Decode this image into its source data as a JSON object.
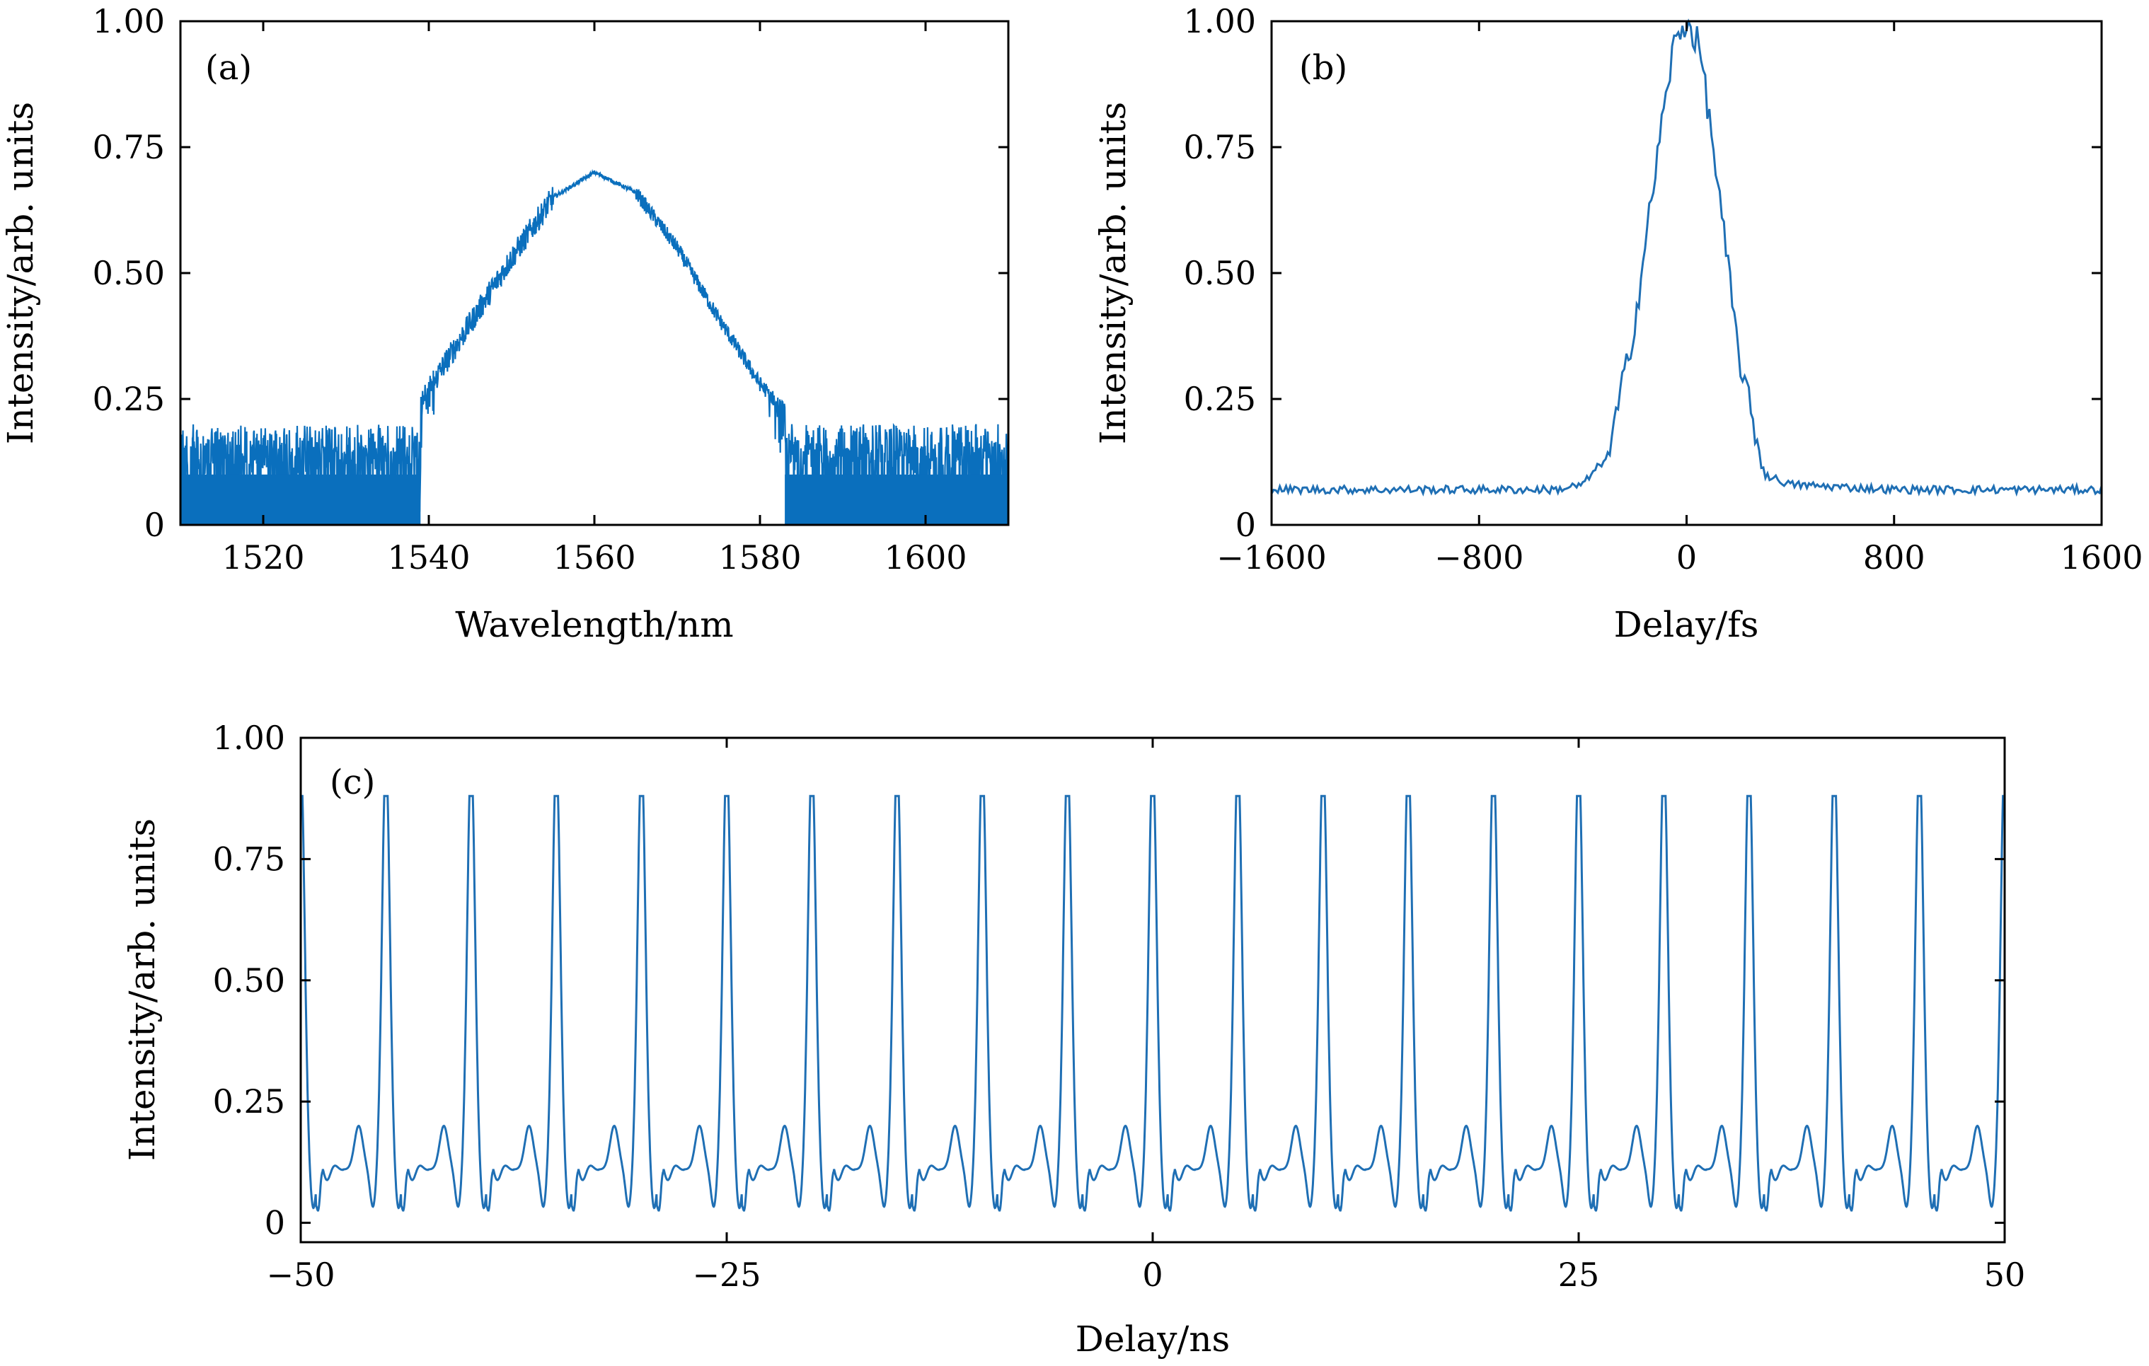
{
  "figure": {
    "line_color": "#1f6fb4",
    "fill_color": "#0a6fbd"
  },
  "chart_data": [
    {
      "id": "a",
      "type": "line",
      "panel_label": "(a)",
      "xlabel": "Wavelength/nm",
      "ylabel": "Intensity/arb. units",
      "xlim": [
        1510,
        1610
      ],
      "ylim": [
        0,
        1
      ],
      "xticks": [
        1520,
        1540,
        1560,
        1580,
        1600
      ],
      "xtick_labels": [
        "1520",
        "1540",
        "1560",
        "1580",
        "1600"
      ],
      "yticks": [
        0,
        0.25,
        0.5,
        0.75,
        1.0
      ],
      "ytick_labels": [
        "0",
        "0.25",
        "0.50",
        "0.75",
        "1.00"
      ],
      "grid": false,
      "peak_wavelength": 1560,
      "peak_intensity": 0.7,
      "noise_floor": 0.18,
      "series": [
        {
          "x": [
            1510,
            1520,
            1530,
            1536,
            1540,
            1545,
            1550,
            1555,
            1560,
            1565,
            1570,
            1575,
            1580,
            1585,
            1590,
            1600,
            1610
          ],
          "values": [
            0.17,
            0.17,
            0.17,
            0.19,
            0.27,
            0.4,
            0.53,
            0.65,
            0.7,
            0.66,
            0.55,
            0.41,
            0.28,
            0.19,
            0.17,
            0.17,
            0.17
          ]
        }
      ]
    },
    {
      "id": "b",
      "type": "line",
      "panel_label": "(b)",
      "xlabel": "Delay/fs",
      "ylabel": "Intensity/arb. units",
      "xlim": [
        -1600,
        1600
      ],
      "ylim": [
        0,
        1
      ],
      "xticks": [
        -1600,
        -800,
        0,
        800,
        1600
      ],
      "xtick_labels": [
        "−1600",
        "−800",
        "0",
        "800",
        "1600"
      ],
      "yticks": [
        0,
        0.25,
        0.5,
        0.75,
        1.0
      ],
      "ytick_labels": [
        "0",
        "0.25",
        "0.50",
        "0.75",
        "1.00"
      ],
      "grid": false,
      "series": [
        {
          "x": [
            -1600,
            -1200,
            -800,
            -500,
            -400,
            -300,
            -200,
            -100,
            -50,
            0,
            50,
            100,
            200,
            300,
            400,
            800,
            1200,
            1600
          ],
          "values": [
            0.07,
            0.07,
            0.07,
            0.07,
            0.08,
            0.14,
            0.4,
            0.78,
            0.95,
            1.0,
            0.95,
            0.76,
            0.34,
            0.1,
            0.08,
            0.07,
            0.07,
            0.07
          ]
        }
      ]
    },
    {
      "id": "c",
      "type": "line",
      "panel_label": "(c)",
      "xlabel": "Delay/ns",
      "ylabel": "Intensity/arb. units",
      "xlim": [
        -50,
        50
      ],
      "ylim": [
        -0.04,
        1.0
      ],
      "xticks": [
        -50,
        -25,
        0,
        25,
        50
      ],
      "xtick_labels": [
        "−50",
        "−25",
        "0",
        "25",
        "50"
      ],
      "yticks": [
        0,
        0.25,
        0.5,
        0.75,
        1.0
      ],
      "ytick_labels": [
        "0",
        "0.25",
        "0.50",
        "0.75",
        "1.00"
      ],
      "grid": false,
      "pulse_period_ns": 5,
      "pulse_peak_intensity": 0.85,
      "pulse_centers_ns": [
        -50,
        -45,
        -40,
        -35,
        -30,
        -25,
        -20,
        -15,
        -10,
        -5,
        0,
        5,
        10,
        15,
        20,
        25,
        30,
        35,
        40,
        45,
        50
      ],
      "background_min": 0.02,
      "sidelobe_peak": 0.22
    }
  ]
}
